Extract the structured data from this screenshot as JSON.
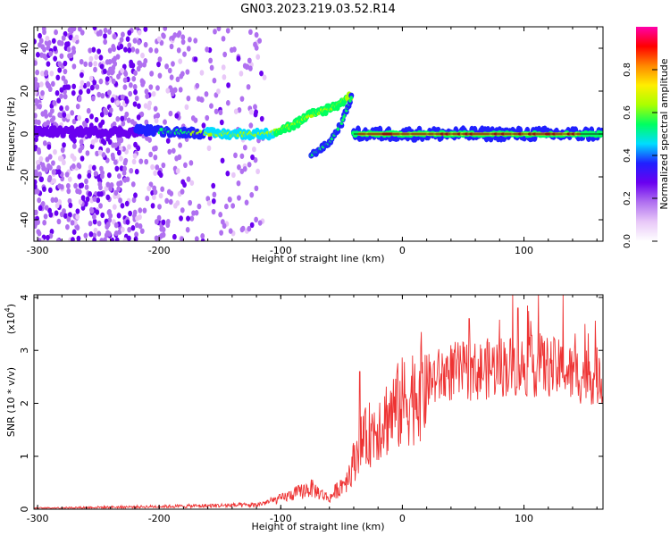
{
  "title": "GN03.2023.219.03.52.R14",
  "colors": {
    "snr_line": "#ee3333",
    "axis": "#000000"
  },
  "chart_data": [
    {
      "type": "heatmap",
      "xlabel": "Height of straight line (km)",
      "ylabel": "Frequency (Hz)",
      "xlim": [
        -303,
        165
      ],
      "ylim": [
        -50,
        50
      ],
      "x_ticks": [
        -300,
        -200,
        -100,
        0,
        100
      ],
      "x_tick_labels": [
        "-300",
        "-200",
        "-100",
        "0",
        "100"
      ],
      "y_ticks": [
        -40,
        -20,
        0,
        20,
        40
      ],
      "y_tick_labels": [
        "-40",
        "-20",
        "0",
        "20",
        "40"
      ],
      "colorbar": {
        "label": "Normalized spectral amplitude",
        "range": [
          0,
          1
        ],
        "ticks": [
          0.0,
          0.2,
          0.4,
          0.6,
          0.8
        ],
        "tick_labels": [
          "0.0",
          "0.2",
          "0.4",
          "0.6",
          "0.8"
        ],
        "colormap": [
          "#ffffff",
          "#e8c8f8",
          "#b070f0",
          "#6a00f0",
          "#2020ff",
          "#00ddff",
          "#00ff60",
          "#aaff00",
          "#ffee00",
          "#ff8800",
          "#ff0000",
          "#ff00aa"
        ]
      },
      "features": [
        {
          "name": "noise",
          "x_range": [
            -303,
            -120
          ],
          "y_range": [
            -50,
            50
          ]
        },
        {
          "name": "track",
          "points": [
            [
              -220,
              2
            ],
            [
              -150,
              0
            ],
            [
              -110,
              0
            ],
            [
              -90,
              4
            ],
            [
              -75,
              9
            ],
            [
              -55,
              13
            ],
            [
              -42,
              18
            ]
          ]
        },
        {
          "name": "branch",
          "points": [
            [
              -75,
              -10
            ],
            [
              -60,
              -4
            ],
            [
              -50,
              5
            ],
            [
              -42,
              17
            ]
          ]
        },
        {
          "name": "carrier",
          "x_range": [
            -40,
            165
          ],
          "y": 0
        }
      ]
    },
    {
      "type": "line",
      "xlabel": "Height of straight line (km)",
      "ylabel": "SNR (10 * v/v)",
      "y_exponent_label": "(x10",
      "y_exponent": "4",
      "y_exponent_close": ")",
      "xlim": [
        -303,
        165
      ],
      "ylim": [
        0,
        4.05
      ],
      "x_ticks": [
        -300,
        -200,
        -100,
        0,
        100
      ],
      "x_tick_labels": [
        "-300",
        "-200",
        "-100",
        "0",
        "100"
      ],
      "y_ticks": [
        0,
        1,
        2,
        3,
        4
      ],
      "y_tick_labels": [
        "0",
        "1",
        "2",
        "3",
        "4"
      ],
      "envelope": [
        [
          -303,
          0.02
        ],
        [
          -200,
          0.05
        ],
        [
          -120,
          0.08
        ],
        [
          -100,
          0.2
        ],
        [
          -75,
          0.4
        ],
        [
          -60,
          0.2
        ],
        [
          -45,
          0.6
        ],
        [
          -35,
          1.2
        ],
        [
          -20,
          1.6
        ],
        [
          0,
          2.0
        ],
        [
          20,
          2.4
        ],
        [
          40,
          2.6
        ],
        [
          60,
          2.6
        ],
        [
          80,
          2.7
        ],
        [
          100,
          2.7
        ],
        [
          120,
          2.7
        ],
        [
          140,
          2.55
        ],
        [
          165,
          2.5
        ]
      ],
      "peaks": [
        [
          -35,
          2.6
        ],
        [
          55,
          3.6
        ],
        [
          95,
          3.8
        ],
        [
          112,
          4.05
        ],
        [
          132,
          4.05
        ],
        [
          150,
          3.5
        ]
      ]
    }
  ]
}
